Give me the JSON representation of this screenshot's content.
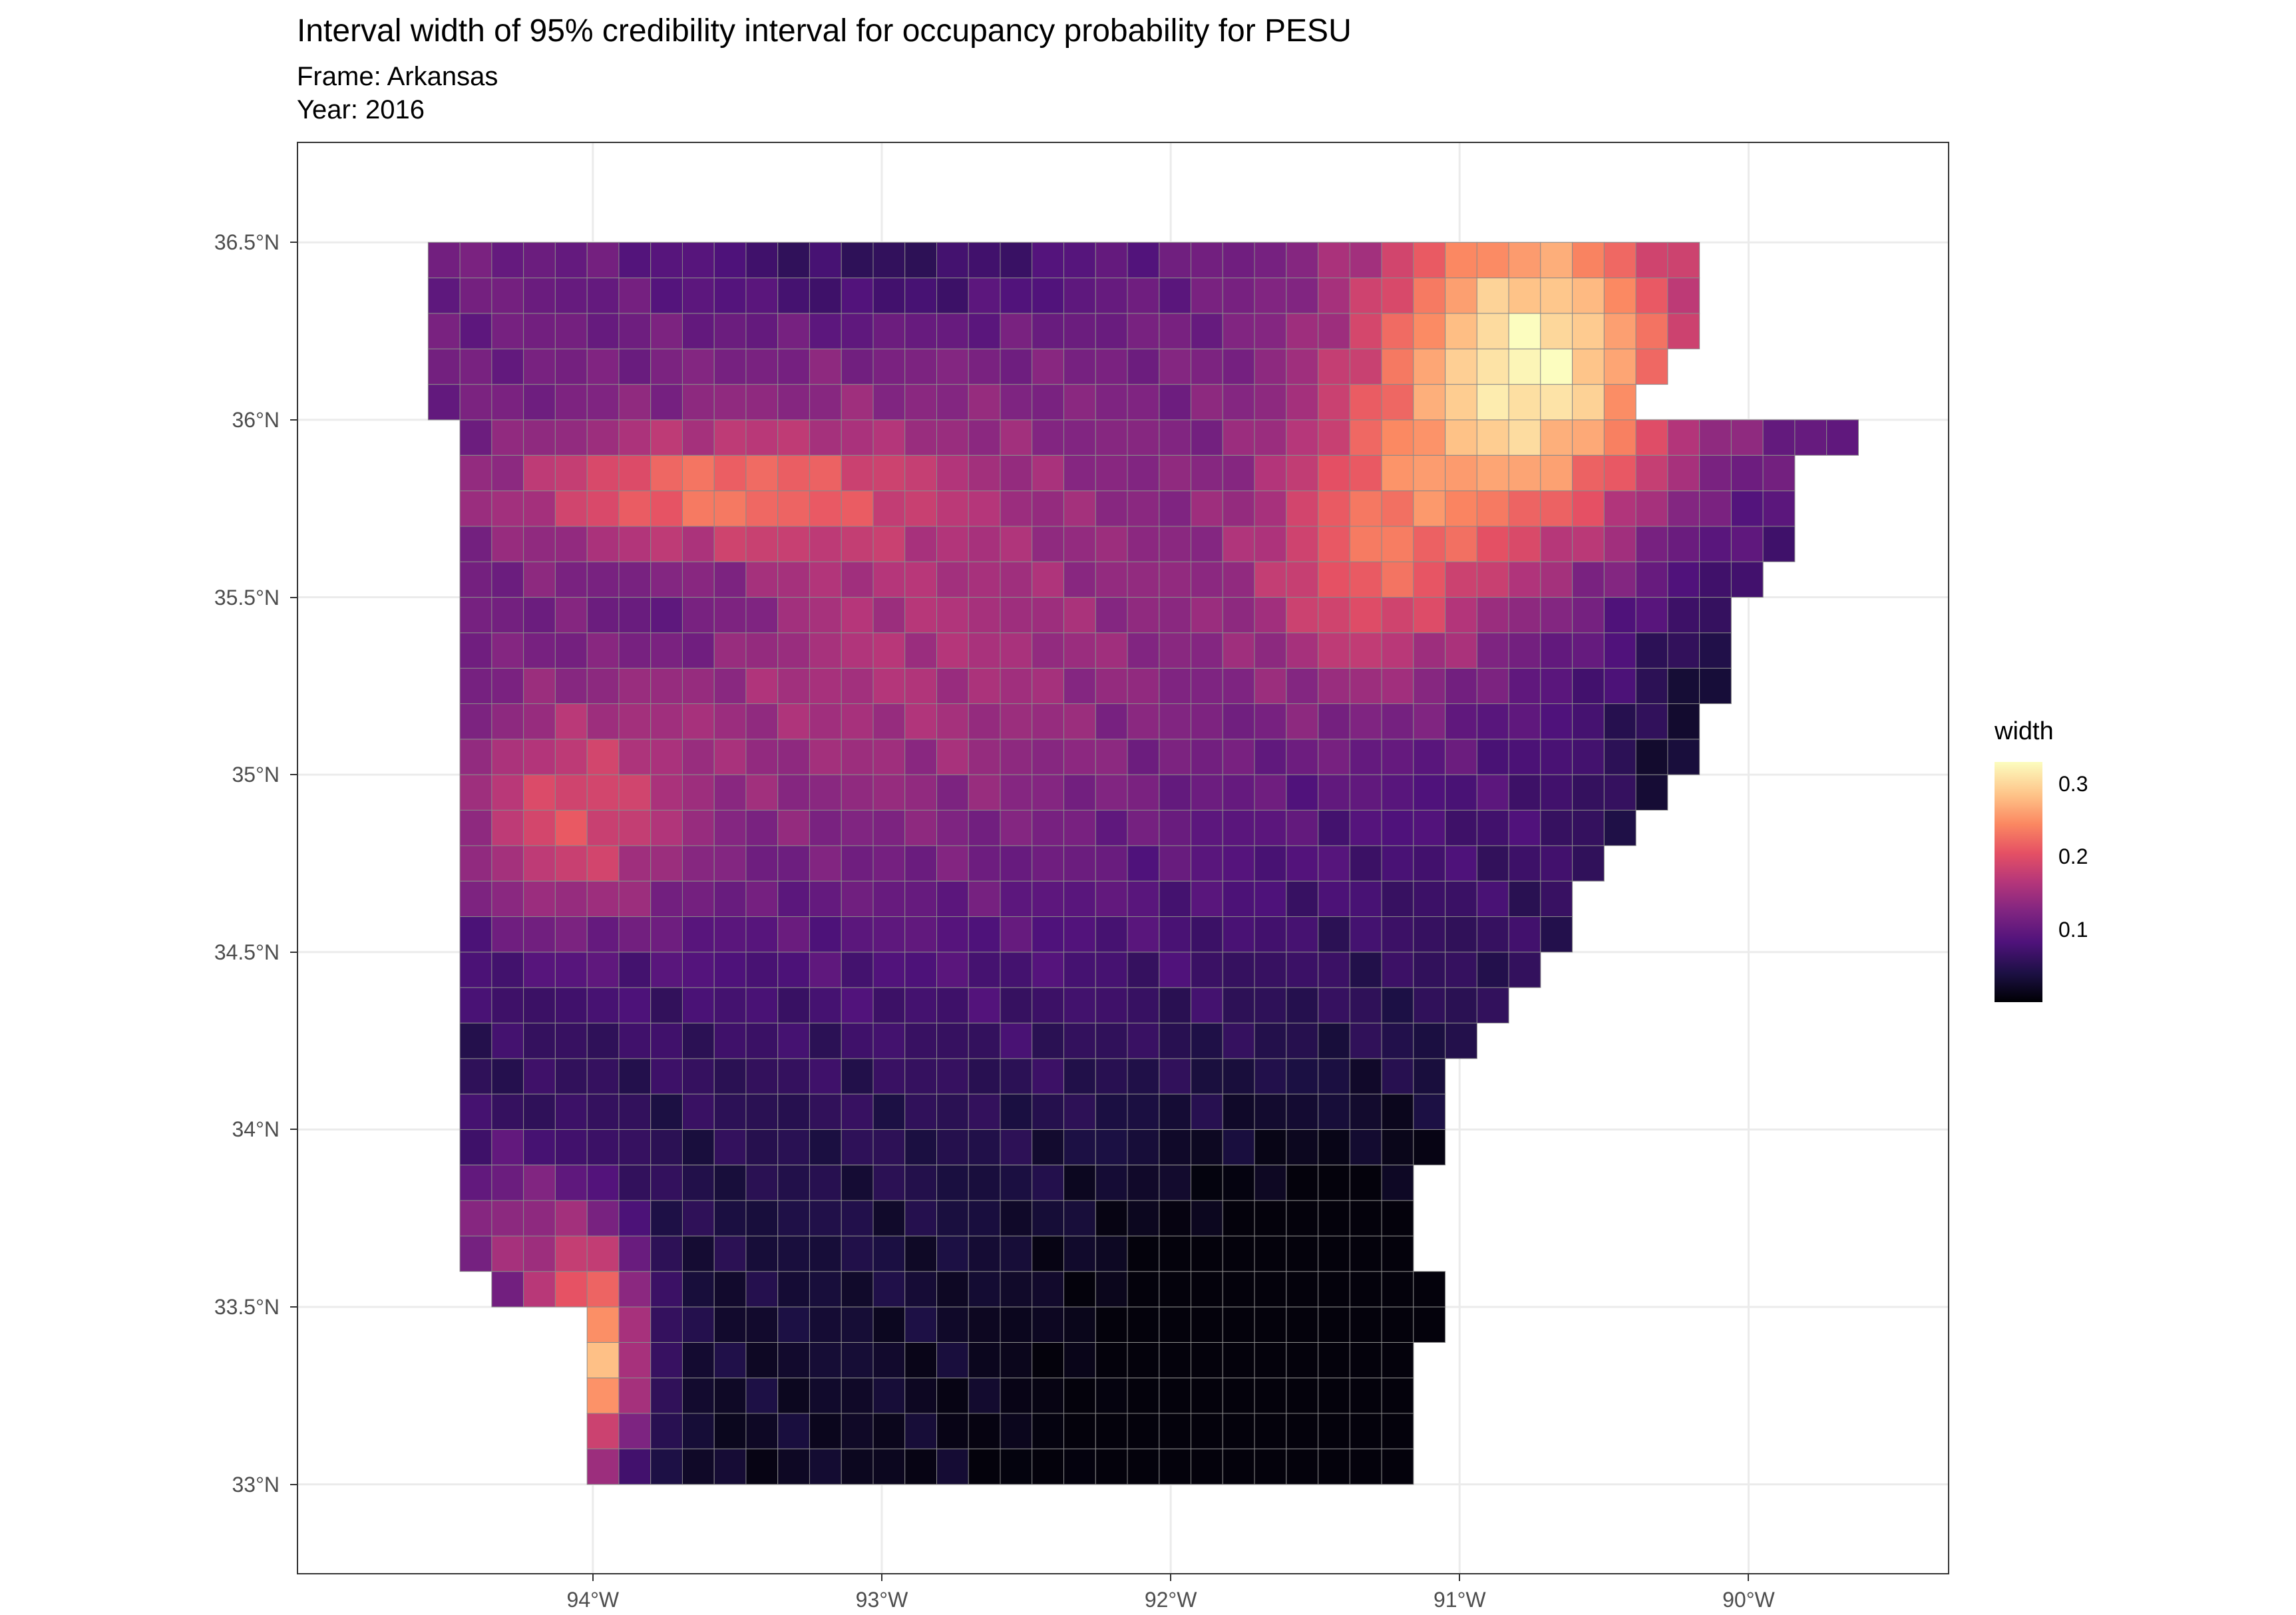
{
  "chart_data": {
    "type": "heatmap",
    "title": "Interval width of 95% credibility interval for occupancy probability for PESU",
    "subtitle_lines": [
      "Frame: Arkansas",
      "Year: 2016"
    ],
    "xlabel": "",
    "ylabel": "",
    "x_ticks": [
      {
        "value": -94,
        "label": "94°W"
      },
      {
        "value": -93,
        "label": "93°W"
      },
      {
        "value": -92,
        "label": "92°W"
      },
      {
        "value": -91,
        "label": "91°W"
      },
      {
        "value": -90,
        "label": "90°W"
      }
    ],
    "y_ticks": [
      {
        "value": 33,
        "label": "33°N"
      },
      {
        "value": 33.5,
        "label": "33.5°N"
      },
      {
        "value": 34,
        "label": "34°N"
      },
      {
        "value": 34.5,
        "label": "34.5°N"
      },
      {
        "value": 35,
        "label": "35°N"
      },
      {
        "value": 35.5,
        "label": "35.5°N"
      },
      {
        "value": 36,
        "label": "36°N"
      },
      {
        "value": 36.5,
        "label": "36.5°N"
      }
    ],
    "xlim": [
      -95.02,
      -89.31
    ],
    "ylim": [
      32.75,
      36.78
    ],
    "grid": true,
    "colormap": "magma",
    "legend": {
      "title": "width",
      "placement": "right",
      "range": [
        0.0,
        0.33
      ],
      "ticks": [
        {
          "value": 0.1,
          "label": "0.1"
        },
        {
          "value": 0.2,
          "label": "0.2"
        },
        {
          "value": 0.3,
          "label": "0.3"
        }
      ]
    },
    "notes": "Gridded cells (~0.11° lon x ~0.10° lat) covering Arkansas; width is highest in the northeast and near the southwest corner, lowest in the southeast and north-central areas.",
    "hotspots": [
      {
        "lon": -90.7,
        "lat": 36.5,
        "width": 0.33
      },
      {
        "lon": -90.6,
        "lat": 35.8,
        "width": 0.28
      },
      {
        "lon": -94.05,
        "lat": 33.3,
        "width": 0.32
      },
      {
        "lon": -93.55,
        "lat": 35.8,
        "width": 0.27
      },
      {
        "lon": -93.8,
        "lat": 35.0,
        "width": 0.27
      },
      {
        "lon": -91.4,
        "lat": 35.55,
        "width": 0.26
      }
    ],
    "coldspots": [
      {
        "lon": -91.3,
        "lat": 33.2,
        "width": 0.01
      },
      {
        "lon": -93.0,
        "lat": 36.5,
        "width": 0.02
      },
      {
        "lon": -94.5,
        "lat": 36.3,
        "width": 0.03
      },
      {
        "lon": -90.1,
        "lat": 35.1,
        "width": 0.03
      }
    ]
  }
}
